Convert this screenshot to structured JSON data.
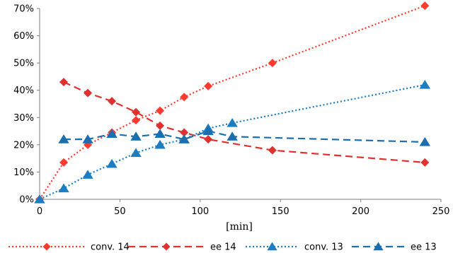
{
  "chart_data": {
    "type": "line",
    "title": "",
    "xlabel": "[min]",
    "ylabel": "",
    "xlim": [
      0,
      250
    ],
    "ylim": [
      0,
      0.7
    ],
    "xticks": [
      0,
      50,
      100,
      150,
      200,
      250
    ],
    "xtick_labels": [
      "0",
      "50",
      "100",
      "150",
      "200",
      "250"
    ],
    "yticks": [
      0,
      0.1,
      0.2,
      0.3,
      0.4,
      0.5,
      0.6,
      0.7
    ],
    "ytick_labels": [
      "0%",
      "10%",
      "20%",
      "30%",
      "40%",
      "50%",
      "60%",
      "70%"
    ],
    "grid": false,
    "legend_position": "bottom",
    "series": [
      {
        "name": "conv. 14",
        "color": "#ff3b30",
        "line_style": "dotted",
        "marker": "diamond",
        "x": [
          0,
          15,
          30,
          45,
          60,
          75,
          90,
          105,
          145,
          240
        ],
        "y": [
          0.0,
          0.135,
          0.2,
          0.245,
          0.29,
          0.325,
          0.375,
          0.415,
          0.5,
          0.71
        ]
      },
      {
        "name": "ee 14",
        "color": "#e03030",
        "line_style": "dashed",
        "marker": "diamond",
        "x": [
          15,
          30,
          45,
          60,
          75,
          90,
          105,
          145,
          240
        ],
        "y": [
          0.43,
          0.39,
          0.36,
          0.32,
          0.27,
          0.245,
          0.22,
          0.18,
          0.135
        ]
      },
      {
        "name": "conv. 13",
        "color": "#1b7ec2",
        "line_style": "dotted",
        "marker": "triangle",
        "x": [
          0,
          15,
          30,
          45,
          60,
          75,
          90,
          105,
          120,
          240
        ],
        "y": [
          0.0,
          0.04,
          0.09,
          0.13,
          0.17,
          0.2,
          0.22,
          0.26,
          0.28,
          0.42
        ]
      },
      {
        "name": "ee 13",
        "color": "#1b6fb0",
        "line_style": "dashed",
        "marker": "triangle",
        "x": [
          15,
          30,
          45,
          60,
          75,
          90,
          105,
          120,
          240
        ],
        "y": [
          0.22,
          0.22,
          0.24,
          0.23,
          0.24,
          0.22,
          0.25,
          0.23,
          0.21
        ]
      }
    ]
  }
}
